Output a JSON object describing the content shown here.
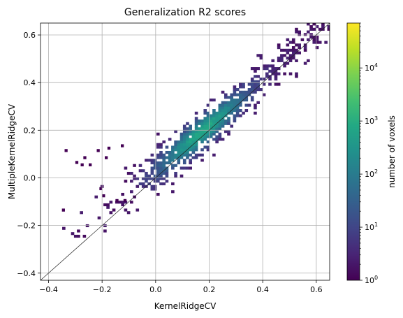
{
  "chart_data": {
    "type": "heatmap",
    "title": "Generalization R2 scores",
    "xlabel": "KernelRidgeCV",
    "ylabel": "MultipleKernelRidgeCV",
    "xlim": [
      -0.43,
      0.65
    ],
    "ylim": [
      -0.43,
      0.65
    ],
    "xticks": [
      -0.4,
      -0.2,
      0.0,
      0.2,
      0.4,
      0.6
    ],
    "xtick_labels": [
      "−0.4",
      "−0.2",
      "0.0",
      "0.2",
      "0.4",
      "0.6"
    ],
    "yticks": [
      -0.4,
      -0.2,
      0.0,
      0.2,
      0.4,
      0.6
    ],
    "ytick_labels": [
      "−0.4",
      "−0.2",
      "0.0",
      "0.2",
      "0.4",
      "0.6"
    ],
    "grid": true,
    "colormap": "viridis",
    "colorbar": {
      "label": "number of voxels",
      "scale": "log",
      "range": [
        1,
        70000
      ],
      "ticks": [
        1,
        10,
        100,
        1000,
        10000
      ],
      "tick_bases": [
        "10",
        "10",
        "10",
        "10",
        "10"
      ],
      "tick_exponents": [
        "0",
        "1",
        "2",
        "3",
        "4"
      ]
    },
    "identity_line": true,
    "bins": 100,
    "distribution": "2D histogram of voxel counts concentrated along the identity line y = x, from about 0 to 0.65, with most counts slightly above the diagonal; sparse outlier bins extend down to x ≈ −0.35, y ≈ −0.2"
  }
}
